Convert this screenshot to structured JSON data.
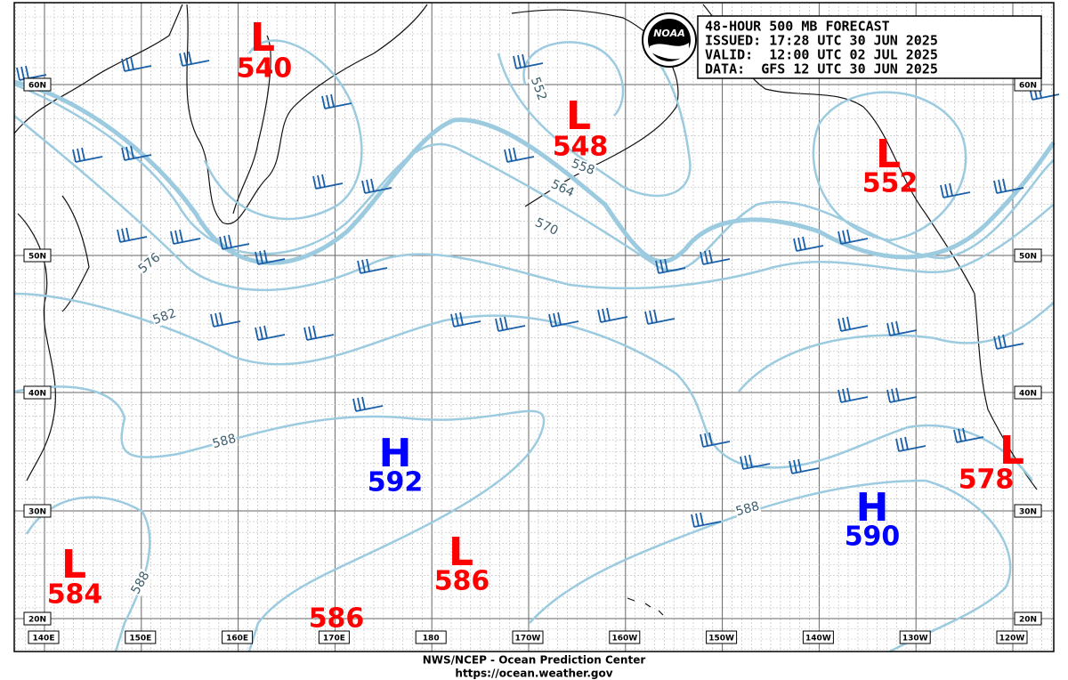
{
  "header": {
    "lines": [
      "48-HOUR 500 MB FORECAST",
      "ISSUED: 17:28 UTC 30 JUN 2025",
      "VALID:  12:00 UTC 02 JUL 2025",
      "DATA:  GFS 12 UTC 30 JUN 2025"
    ]
  },
  "logo": "NOAA",
  "lat_labels": [
    "60N",
    "50N",
    "40N",
    "30N",
    "20N"
  ],
  "lon_labels": [
    "140E",
    "150E",
    "160E",
    "170E",
    "180",
    "170W",
    "160W",
    "150W",
    "140W",
    "130W",
    "120W"
  ],
  "centers": [
    {
      "type": "L",
      "value": "540",
      "color": "#ff0000"
    },
    {
      "type": "L",
      "value": "548",
      "color": "#ff0000"
    },
    {
      "type": "L",
      "value": "552",
      "color": "#ff0000"
    },
    {
      "type": "H",
      "value": "592",
      "color": "#0000ff"
    },
    {
      "type": "L",
      "value": "578",
      "color": "#ff0000"
    },
    {
      "type": "H",
      "value": "590",
      "color": "#0000ff"
    },
    {
      "type": "L",
      "value": "584",
      "color": "#ff0000"
    },
    {
      "type": "L",
      "value": "586",
      "color": "#ff0000"
    },
    {
      "value": "586",
      "color": "#ff0000"
    }
  ],
  "contour_labels": [
    "552",
    "558",
    "564",
    "570",
    "576",
    "582",
    "588",
    "588",
    "588"
  ],
  "footer": {
    "lines": [
      "NWS/NCEP - Ocean Prediction Center",
      "https://ocean.weather.gov"
    ]
  }
}
